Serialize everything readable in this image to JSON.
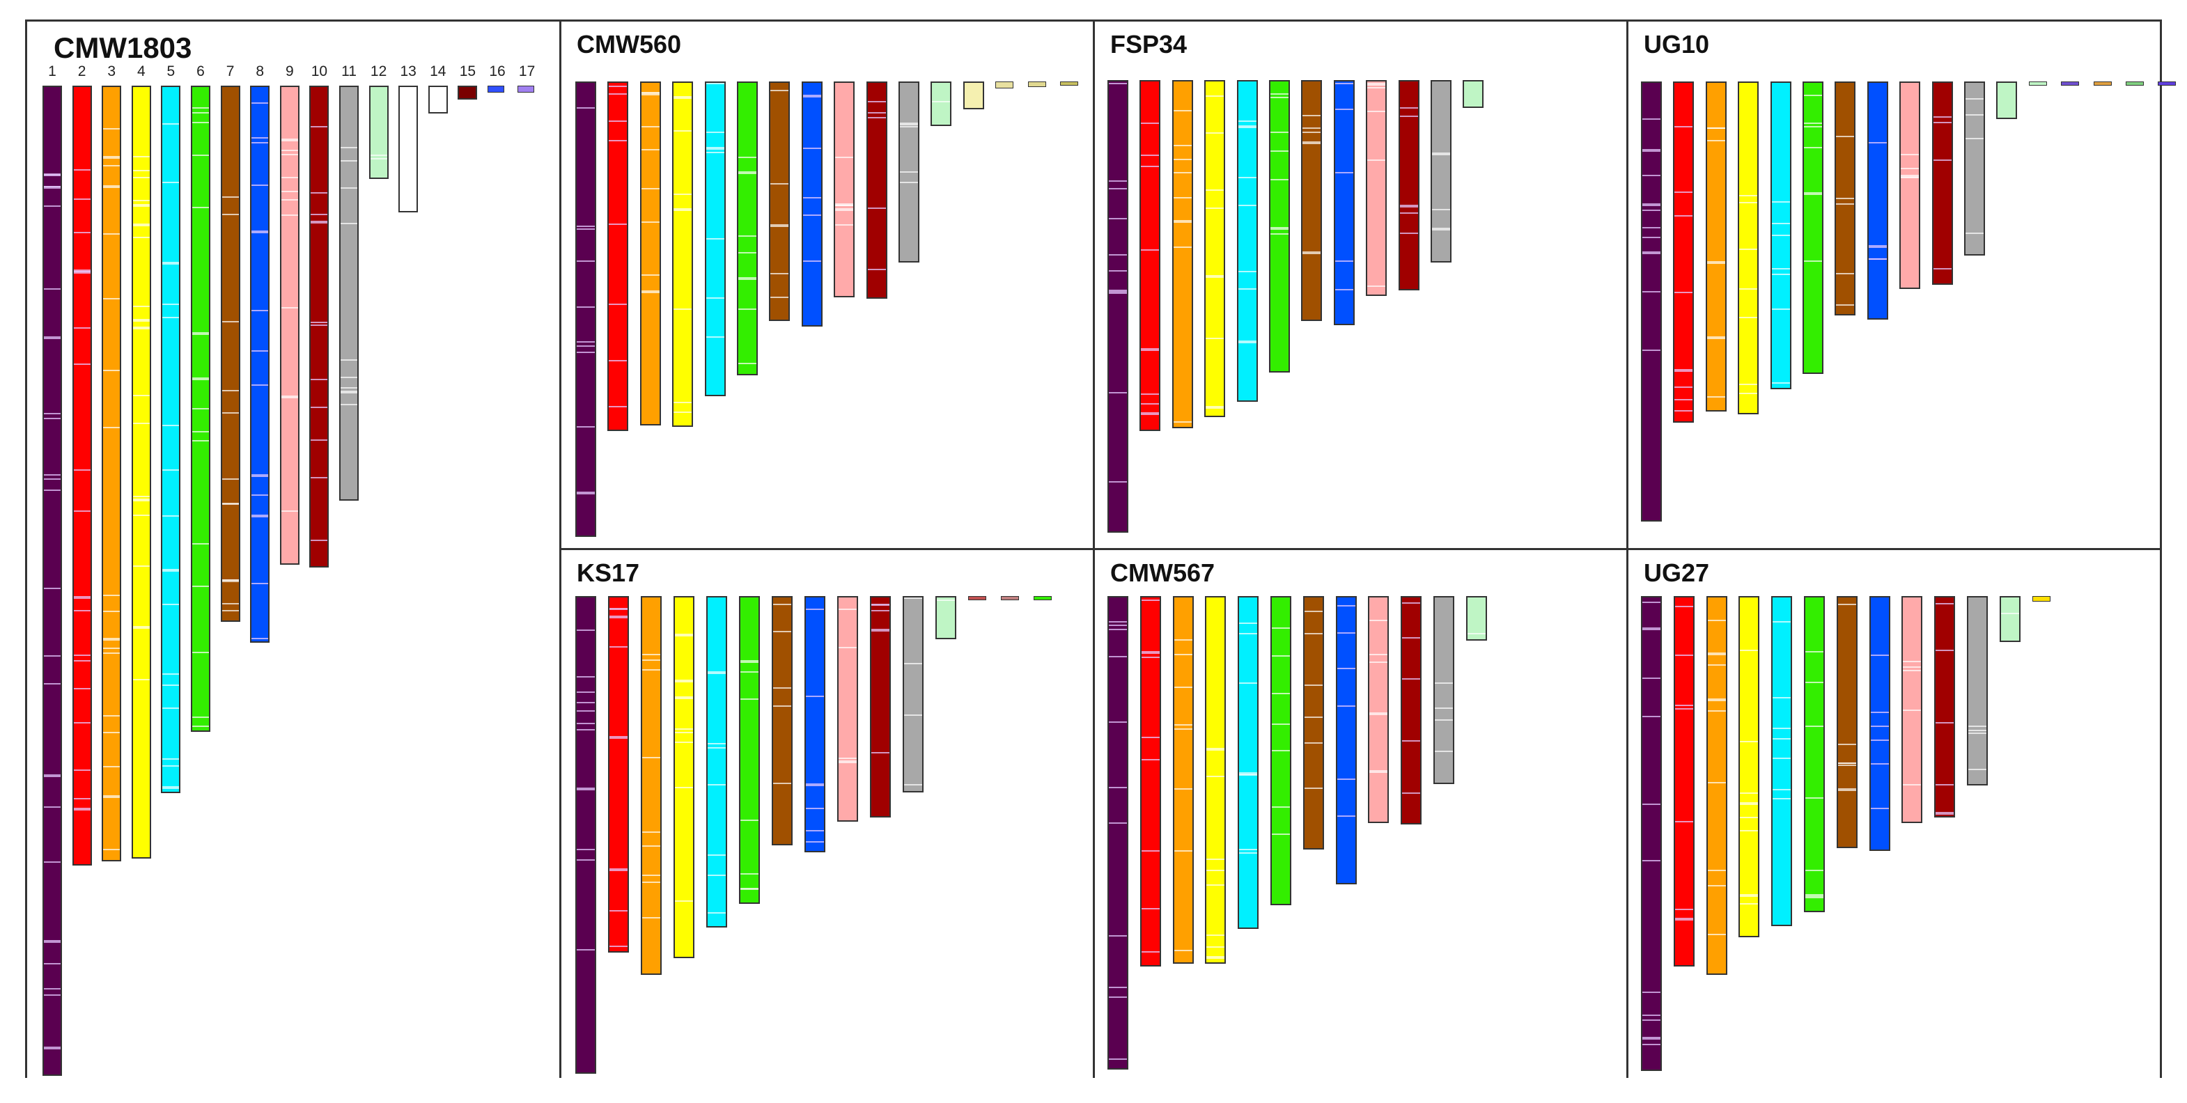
{
  "figure": {
    "panels": [
      {
        "id": "cmw1803",
        "title": "CMW1803",
        "number_labels": [
          "1",
          "2",
          "3",
          "4",
          "5",
          "6",
          "7",
          "8",
          "9",
          "10",
          "11",
          "12",
          "13",
          "14",
          "15",
          "16",
          "17"
        ],
        "chromosomes": [
          {
            "n": 1,
            "color": "#5a0050",
            "len": 1422
          },
          {
            "n": 2,
            "color": "#ff0000",
            "len": 1120
          },
          {
            "n": 3,
            "color": "#ffa000",
            "len": 1114
          },
          {
            "n": 4,
            "color": "#ffff00",
            "len": 1110
          },
          {
            "n": 5,
            "color": "#00f0ff",
            "len": 1016
          },
          {
            "n": 6,
            "color": "#33ee00",
            "len": 928
          },
          {
            "n": 7,
            "color": "#a05000",
            "len": 770
          },
          {
            "n": 8,
            "color": "#0050ff",
            "len": 800
          },
          {
            "n": 9,
            "color": "#ffaaaa",
            "len": 688
          },
          {
            "n": 10,
            "color": "#a00000",
            "len": 692
          },
          {
            "n": 11,
            "color": "#a8a8a8",
            "len": 596
          },
          {
            "n": 12,
            "color": "#bff5c5",
            "len": 134
          },
          {
            "n": 13,
            "color": "#ffffff",
            "len": 182
          },
          {
            "n": 14,
            "color": "#ffffff",
            "len": 40
          },
          {
            "n": 15,
            "color": "#7a0000",
            "len": 20
          },
          {
            "n": 16,
            "color": "#3050ff",
            "len": 10
          },
          {
            "n": 17,
            "color": "#a080f0",
            "len": 10
          }
        ]
      },
      {
        "id": "cmw560",
        "title": "CMW560",
        "chromosomes": [
          {
            "color": "#5a0050",
            "len": 654
          },
          {
            "color": "#ff0000",
            "len": 502
          },
          {
            "color": "#ffa000",
            "len": 494
          },
          {
            "color": "#ffff00",
            "len": 496
          },
          {
            "color": "#00f0ff",
            "len": 452
          },
          {
            "color": "#33ee00",
            "len": 422
          },
          {
            "color": "#a05000",
            "len": 344
          },
          {
            "color": "#0050ff",
            "len": 352
          },
          {
            "color": "#ffaaaa",
            "len": 310
          },
          {
            "color": "#a00000",
            "len": 312
          },
          {
            "color": "#a8a8a8",
            "len": 260
          },
          {
            "color": "#bff5c5",
            "len": 64
          },
          {
            "color": "#f5f0b0",
            "len": 40
          },
          {
            "color": "#e8e0a0",
            "len": 10
          },
          {
            "color": "#e0d890",
            "len": 8
          },
          {
            "color": "#c8c060",
            "len": 6
          }
        ]
      },
      {
        "id": "fsp34",
        "title": "FSP34",
        "chromosomes": [
          {
            "color": "#5a0050",
            "len": 650
          },
          {
            "color": "#ff0000",
            "len": 504
          },
          {
            "color": "#ffa000",
            "len": 500
          },
          {
            "color": "#ffff00",
            "len": 484
          },
          {
            "color": "#00f0ff",
            "len": 462
          },
          {
            "color": "#33ee00",
            "len": 420
          },
          {
            "color": "#a05000",
            "len": 346
          },
          {
            "color": "#0050ff",
            "len": 352
          },
          {
            "color": "#ffaaaa",
            "len": 310
          },
          {
            "color": "#a00000",
            "len": 302
          },
          {
            "color": "#a8a8a8",
            "len": 262
          },
          {
            "color": "#bff5c5",
            "len": 40
          }
        ]
      },
      {
        "id": "ug10",
        "title": "UG10",
        "chromosomes": [
          {
            "color": "#5a0050",
            "len": 632
          },
          {
            "color": "#ff0000",
            "len": 490
          },
          {
            "color": "#ffa000",
            "len": 474
          },
          {
            "color": "#ffff00",
            "len": 478
          },
          {
            "color": "#00f0ff",
            "len": 442
          },
          {
            "color": "#33ee00",
            "len": 420
          },
          {
            "color": "#a05000",
            "len": 336
          },
          {
            "color": "#0050ff",
            "len": 342
          },
          {
            "color": "#ffaaaa",
            "len": 298
          },
          {
            "color": "#a00000",
            "len": 292
          },
          {
            "color": "#a8a8a8",
            "len": 250
          },
          {
            "color": "#bff5c5",
            "len": 54
          },
          {
            "color": "#bff5c5",
            "len": 6
          },
          {
            "color": "#7050d0",
            "len": 4
          },
          {
            "color": "#e0a040",
            "len": 4
          },
          {
            "color": "#80d080",
            "len": 4
          },
          {
            "color": "#6040e0",
            "len": 4
          }
        ]
      },
      {
        "id": "ks17",
        "title": "KS17",
        "chromosomes": [
          {
            "color": "#5a0050",
            "len": 686
          },
          {
            "color": "#ff0000",
            "len": 512
          },
          {
            "color": "#ffa000",
            "len": 544
          },
          {
            "color": "#ffff00",
            "len": 520
          },
          {
            "color": "#00f0ff",
            "len": 476
          },
          {
            "color": "#33ee00",
            "len": 442
          },
          {
            "color": "#a05000",
            "len": 358
          },
          {
            "color": "#0050ff",
            "len": 368
          },
          {
            "color": "#ffaaaa",
            "len": 324
          },
          {
            "color": "#a00000",
            "len": 318
          },
          {
            "color": "#a8a8a8",
            "len": 282
          },
          {
            "color": "#bff5c5",
            "len": 62
          },
          {
            "color": "#c05050",
            "len": 4
          },
          {
            "color": "#c08080",
            "len": 4
          },
          {
            "color": "#33ee00",
            "len": 6
          }
        ]
      },
      {
        "id": "cmw567",
        "title": "CMW567",
        "chromosomes": [
          {
            "color": "#5a0050",
            "len": 680
          },
          {
            "color": "#ff0000",
            "len": 532
          },
          {
            "color": "#ffa000",
            "len": 528
          },
          {
            "color": "#ffff00",
            "len": 528
          },
          {
            "color": "#00f0ff",
            "len": 478
          },
          {
            "color": "#33ee00",
            "len": 444
          },
          {
            "color": "#a05000",
            "len": 364
          },
          {
            "color": "#0050ff",
            "len": 414
          },
          {
            "color": "#ffaaaa",
            "len": 326
          },
          {
            "color": "#a00000",
            "len": 328
          },
          {
            "color": "#a8a8a8",
            "len": 270
          },
          {
            "color": "#bff5c5",
            "len": 64
          }
        ]
      },
      {
        "id": "ug27",
        "title": "UG27",
        "chromosomes": [
          {
            "color": "#5a0050",
            "len": 682
          },
          {
            "color": "#ff0000",
            "len": 532
          },
          {
            "color": "#ffa000",
            "len": 544
          },
          {
            "color": "#ffff00",
            "len": 490
          },
          {
            "color": "#00f0ff",
            "len": 474
          },
          {
            "color": "#33ee00",
            "len": 454
          },
          {
            "color": "#a05000",
            "len": 362
          },
          {
            "color": "#0050ff",
            "len": 366
          },
          {
            "color": "#ffaaaa",
            "len": 326
          },
          {
            "color": "#a00000",
            "len": 318
          },
          {
            "color": "#a8a8a8",
            "len": 272
          },
          {
            "color": "#bff5c5",
            "len": 66
          },
          {
            "color": "#ffe000",
            "len": 8
          }
        ]
      }
    ]
  }
}
